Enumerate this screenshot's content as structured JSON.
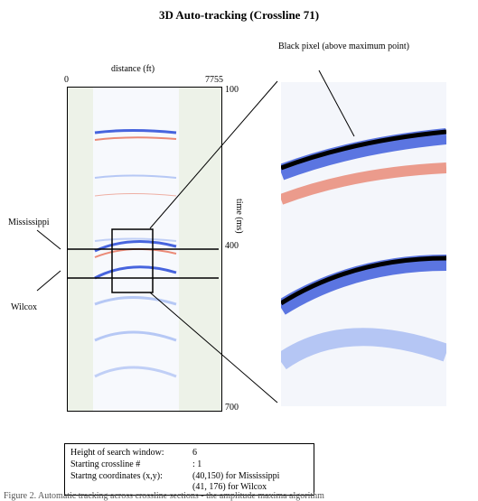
{
  "figure": {
    "title": "3D Auto-tracking (Crossline 71)",
    "x_axis": {
      "label": "distance (ft)",
      "min_label": "0",
      "max_label": "7755"
    },
    "y_axis": {
      "label": "time (ms)",
      "ticks": [
        "100",
        "400",
        "700"
      ]
    },
    "annotations": {
      "black_pixel": "Black pixel (above maximum point)",
      "horizon_upper": "Mississippi",
      "horizon_lower": "Wilcox"
    }
  },
  "params_box": {
    "rows": [
      {
        "label": "Height of search window:",
        "value": "6"
      },
      {
        "label": "Starting crossline #",
        "value": ":  1"
      },
      {
        "label": "Startng coordinates (x,y):",
        "value": "(40,150) for Mississippi"
      },
      {
        "label": "",
        "value": "(41, 176) for Wilcox"
      }
    ]
  },
  "caption": "Figure 2.  Automatic tracking across crossline sections - the amplitude maxima algorithm",
  "colors": {
    "blue": "#1a3fd6",
    "red": "#e2401e",
    "panel_bg": "#edf2e8",
    "black": "#000000"
  }
}
